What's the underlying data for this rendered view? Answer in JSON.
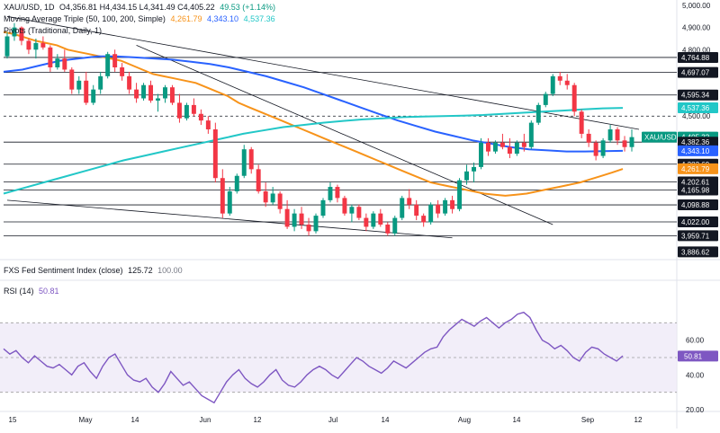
{
  "header": {
    "symbol": "XAU/USD, 1D",
    "ohlc": "O4,356.81  H4,434.15  L4,341.49  C4,405.22",
    "change": "49.53 (+1.14%)",
    "ma_label": "Moving Average Triple (50, 100, 200, Simple)",
    "ma_values": [
      "4,261.79",
      "4,343.10",
      "4,537.36"
    ],
    "pivots_label": "Pivots (Traditional, Daily, 1)"
  },
  "colors": {
    "up": "#089981",
    "down": "#f23645",
    "ma50": "#f7931a",
    "ma100": "#2962ff",
    "ma200": "#22c7c7",
    "rsi": "#7e57c2",
    "line": "#131722",
    "grid": "#e0e3eb"
  },
  "sentiment": {
    "label": "FXS Fed Sentiment Index (close)",
    "value": "125.72",
    "extra": "100.00"
  },
  "rsi": {
    "label": "RSI (14)",
    "value": "50.81",
    "axis_ticks": [
      "60.00",
      "40.00",
      "20.00"
    ],
    "band": [
      30,
      70
    ],
    "values": [
      55,
      52,
      54,
      50,
      47,
      51,
      48,
      45,
      44,
      46,
      43,
      40,
      45,
      47,
      42,
      38,
      45,
      50,
      52,
      46,
      40,
      37,
      36,
      38,
      33,
      30,
      35,
      42,
      38,
      34,
      36,
      32,
      28,
      26,
      24,
      30,
      36,
      40,
      43,
      38,
      35,
      33,
      36,
      40,
      43,
      37,
      34,
      33,
      36,
      40,
      43,
      45,
      43,
      40,
      38,
      42,
      46,
      50,
      48,
      45,
      43,
      41,
      44,
      48,
      46,
      44,
      47,
      50,
      53,
      55,
      56,
      62,
      66,
      69,
      72,
      70,
      68,
      71,
      73,
      70,
      67,
      70,
      72,
      75,
      76,
      73,
      66,
      60,
      58,
      55,
      57,
      54,
      50,
      48,
      53,
      56,
      55,
      52,
      50,
      48,
      51
    ]
  },
  "price_axis": {
    "ticks": [
      "5,000.00",
      "4,900.00",
      "4,800.00",
      "4,500.00"
    ],
    "labels": [
      {
        "text": "4,764.88",
        "value": 4764.88,
        "bg": "#131722",
        "fg": "#ffffff"
      },
      {
        "text": "4,697.07",
        "value": 4697.07,
        "bg": "#131722",
        "fg": "#ffffff"
      },
      {
        "text": "4,595.34",
        "value": 4595.34,
        "bg": "#131722",
        "fg": "#ffffff"
      },
      {
        "text": "4,537.36",
        "value": 4537.36,
        "bg": "#22c7c7",
        "fg": "#ffffff"
      },
      {
        "text": "XAU/USD",
        "value": 4405.22,
        "bg": "#089981",
        "fg": "#ffffff"
      },
      {
        "text": "4,382.36",
        "value": 4382.36,
        "bg": "#131722",
        "fg": "#ffffff"
      },
      {
        "text": "4,343.10",
        "value": 4343.1,
        "bg": "#2962ff",
        "fg": "#ffffff"
      },
      {
        "text": "4,282.69",
        "value": 4282.69,
        "bg": "#131722",
        "fg": "#ffffff"
      },
      {
        "text": "4,261.79",
        "value": 4261.79,
        "bg": "#f7931a",
        "fg": "#ffffff"
      },
      {
        "text": "4,202.61",
        "value": 4202.61,
        "bg": "#131722",
        "fg": "#ffffff"
      },
      {
        "text": "4,165.98",
        "value": 4165.98,
        "bg": "#131722",
        "fg": "#ffffff"
      },
      {
        "text": "4,098.88",
        "value": 4098.88,
        "bg": "#131722",
        "fg": "#ffffff"
      },
      {
        "text": "4,022.00",
        "value": 4022.0,
        "bg": "#131722",
        "fg": "#ffffff"
      },
      {
        "text": "3,959.71",
        "value": 3959.71,
        "bg": "#131722",
        "fg": "#ffffff"
      },
      {
        "text": "3,886.62",
        "value": 3886.62,
        "bg": "#131722",
        "fg": "#ffffff"
      }
    ],
    "price_value": "4,405.22"
  },
  "time_axis": {
    "labels": [
      "15",
      "May",
      "14",
      "Jun",
      "12",
      "Jul",
      "14",
      "Aug",
      "14",
      "Sep",
      "12"
    ]
  },
  "chart_data": {
    "type": "candlestick",
    "title": "XAU/USD, 1D",
    "ylim": [
      3880,
      5000
    ],
    "candles": [
      [
        4770,
        4880,
        4760,
        4860
      ],
      [
        4860,
        4920,
        4840,
        4900
      ],
      [
        4900,
        4905,
        4820,
        4840
      ],
      [
        4840,
        4850,
        4780,
        4800
      ],
      [
        4800,
        4850,
        4760,
        4830
      ],
      [
        4830,
        4860,
        4800,
        4810
      ],
      [
        4810,
        4820,
        4700,
        4720
      ],
      [
        4720,
        4780,
        4710,
        4760
      ],
      [
        4760,
        4800,
        4700,
        4710
      ],
      [
        4710,
        4720,
        4600,
        4620
      ],
      [
        4620,
        4680,
        4600,
        4660
      ],
      [
        4660,
        4700,
        4550,
        4560
      ],
      [
        4560,
        4640,
        4550,
        4620
      ],
      [
        4620,
        4700,
        4600,
        4680
      ],
      [
        4680,
        4790,
        4670,
        4780
      ],
      [
        4780,
        4800,
        4700,
        4720
      ],
      [
        4720,
        4740,
        4660,
        4680
      ],
      [
        4680,
        4700,
        4600,
        4620
      ],
      [
        4620,
        4650,
        4560,
        4580
      ],
      [
        4580,
        4650,
        4570,
        4640
      ],
      [
        4640,
        4660,
        4560,
        4570
      ],
      [
        4570,
        4600,
        4520,
        4580
      ],
      [
        4580,
        4640,
        4560,
        4630
      ],
      [
        4630,
        4640,
        4550,
        4560
      ],
      [
        4560,
        4600,
        4470,
        4490
      ],
      [
        4490,
        4560,
        4480,
        4550
      ],
      [
        4550,
        4580,
        4500,
        4510
      ],
      [
        4510,
        4530,
        4460,
        4480
      ],
      [
        4480,
        4500,
        4420,
        4440
      ],
      [
        4440,
        4470,
        4200,
        4220
      ],
      [
        4220,
        4260,
        4040,
        4060
      ],
      [
        4060,
        4180,
        4050,
        4160
      ],
      [
        4160,
        4240,
        4150,
        4230
      ],
      [
        4230,
        4370,
        4220,
        4350
      ],
      [
        4350,
        4360,
        4240,
        4260
      ],
      [
        4260,
        4280,
        4150,
        4160
      ],
      [
        4160,
        4200,
        4090,
        4110
      ],
      [
        4110,
        4180,
        4100,
        4150
      ],
      [
        4150,
        4160,
        4060,
        4080
      ],
      [
        4080,
        4120,
        3990,
        4000
      ],
      [
        4000,
        4080,
        3980,
        4060
      ],
      [
        4060,
        4090,
        3990,
        4010
      ],
      [
        4010,
        4040,
        3960,
        3980
      ],
      [
        3980,
        4060,
        3970,
        4050
      ],
      [
        4050,
        4130,
        4040,
        4120
      ],
      [
        4120,
        4200,
        4110,
        4180
      ],
      [
        4180,
        4190,
        4110,
        4130
      ],
      [
        4130,
        4140,
        4050,
        4060
      ],
      [
        4060,
        4100,
        4020,
        4090
      ],
      [
        4090,
        4100,
        4030,
        4040
      ],
      [
        4040,
        4060,
        3980,
        4000
      ],
      [
        4000,
        4070,
        3990,
        4060
      ],
      [
        4060,
        4080,
        4000,
        4010
      ],
      [
        4010,
        4020,
        3960,
        3970
      ],
      [
        3970,
        4050,
        3960,
        4040
      ],
      [
        4040,
        4140,
        4030,
        4130
      ],
      [
        4130,
        4170,
        4080,
        4100
      ],
      [
        4100,
        4120,
        4030,
        4050
      ],
      [
        4050,
        4060,
        4000,
        4020
      ],
      [
        4020,
        4110,
        4010,
        4100
      ],
      [
        4100,
        4120,
        4040,
        4060
      ],
      [
        4060,
        4130,
        4050,
        4120
      ],
      [
        4120,
        4140,
        4060,
        4080
      ],
      [
        4080,
        4220,
        4070,
        4210
      ],
      [
        4210,
        4280,
        4190,
        4250
      ],
      [
        4250,
        4290,
        4200,
        4270
      ],
      [
        4270,
        4400,
        4260,
        4380
      ],
      [
        4380,
        4400,
        4320,
        4340
      ],
      [
        4340,
        4390,
        4330,
        4380
      ],
      [
        4380,
        4420,
        4350,
        4360
      ],
      [
        4360,
        4400,
        4310,
        4330
      ],
      [
        4330,
        4390,
        4320,
        4380
      ],
      [
        4380,
        4420,
        4340,
        4360
      ],
      [
        4360,
        4480,
        4350,
        4470
      ],
      [
        4470,
        4560,
        4460,
        4550
      ],
      [
        4550,
        4610,
        4540,
        4600
      ],
      [
        4600,
        4690,
        4590,
        4680
      ],
      [
        4680,
        4700,
        4640,
        4660
      ],
      [
        4660,
        4690,
        4620,
        4640
      ],
      [
        4640,
        4650,
        4500,
        4520
      ],
      [
        4520,
        4530,
        4400,
        4420
      ],
      [
        4420,
        4440,
        4360,
        4380
      ],
      [
        4380,
        4390,
        4300,
        4320
      ],
      [
        4320,
        4400,
        4310,
        4390
      ],
      [
        4390,
        4460,
        4380,
        4440
      ],
      [
        4440,
        4450,
        4370,
        4390
      ],
      [
        4390,
        4410,
        4340,
        4360
      ],
      [
        4360,
        4440,
        4340,
        4405
      ]
    ],
    "moving_averages": [
      {
        "name": "MA 50",
        "last": 4261.79,
        "points": [
          4880,
          4870,
          4855,
          4840,
          4830,
          4820,
          4800,
          4790,
          4780,
          4770,
          4760,
          4750,
          4730,
          4710,
          4690,
          4680,
          4670,
          4660,
          4650,
          4630,
          4610,
          4590,
          4560,
          4540,
          4520,
          4500,
          4480,
          4460,
          4440,
          4420,
          4400,
          4380,
          4360,
          4340,
          4320,
          4300,
          4280,
          4260,
          4240,
          4220,
          4200,
          4190,
          4180,
          4170,
          4160,
          4150,
          4145,
          4140,
          4145,
          4150,
          4160,
          4170,
          4180,
          4190,
          4200,
          4215,
          4230,
          4245,
          4261
        ]
      },
      {
        "name": "MA 100",
        "last": 4343.1,
        "points": [
          4700,
          4710,
          4730,
          4750,
          4760,
          4770,
          4770,
          4765,
          4760,
          4755,
          4745,
          4735,
          4720,
          4700,
          4680,
          4655,
          4630,
          4600,
          4570,
          4540,
          4510,
          4480,
          4455,
          4430,
          4410,
          4390,
          4375,
          4360,
          4350,
          4345,
          4340,
          4340,
          4342,
          4343
        ]
      },
      {
        "name": "MA 200",
        "last": 4537.36,
        "points": [
          4150,
          4175,
          4200,
          4225,
          4250,
          4275,
          4300,
          4320,
          4340,
          4360,
          4380,
          4400,
          4420,
          4435,
          4450,
          4460,
          4470,
          4478,
          4485,
          4490,
          4495,
          4498,
          4500,
          4502,
          4505,
          4510,
          4515,
          4520,
          4525,
          4530,
          4535,
          4537
        ]
      }
    ],
    "pivot_levels": [
      4764.88,
      4697.07,
      4595.34,
      4500.0,
      4382.36,
      4282.69,
      4202.61,
      4165.98,
      4098.88,
      4022.0,
      3959.71
    ],
    "trendlines": [
      {
        "name": "upper-trendline",
        "points": [
          [
            0,
            4950
          ],
          [
            88,
            4440
          ]
        ]
      },
      {
        "name": "middle-trendline",
        "points": [
          [
            18,
            4820
          ],
          [
            76,
            4010
          ]
        ]
      },
      {
        "name": "lower-trendline",
        "points": [
          [
            0,
            4120
          ],
          [
            62,
            3950
          ]
        ]
      }
    ],
    "grid": false
  }
}
